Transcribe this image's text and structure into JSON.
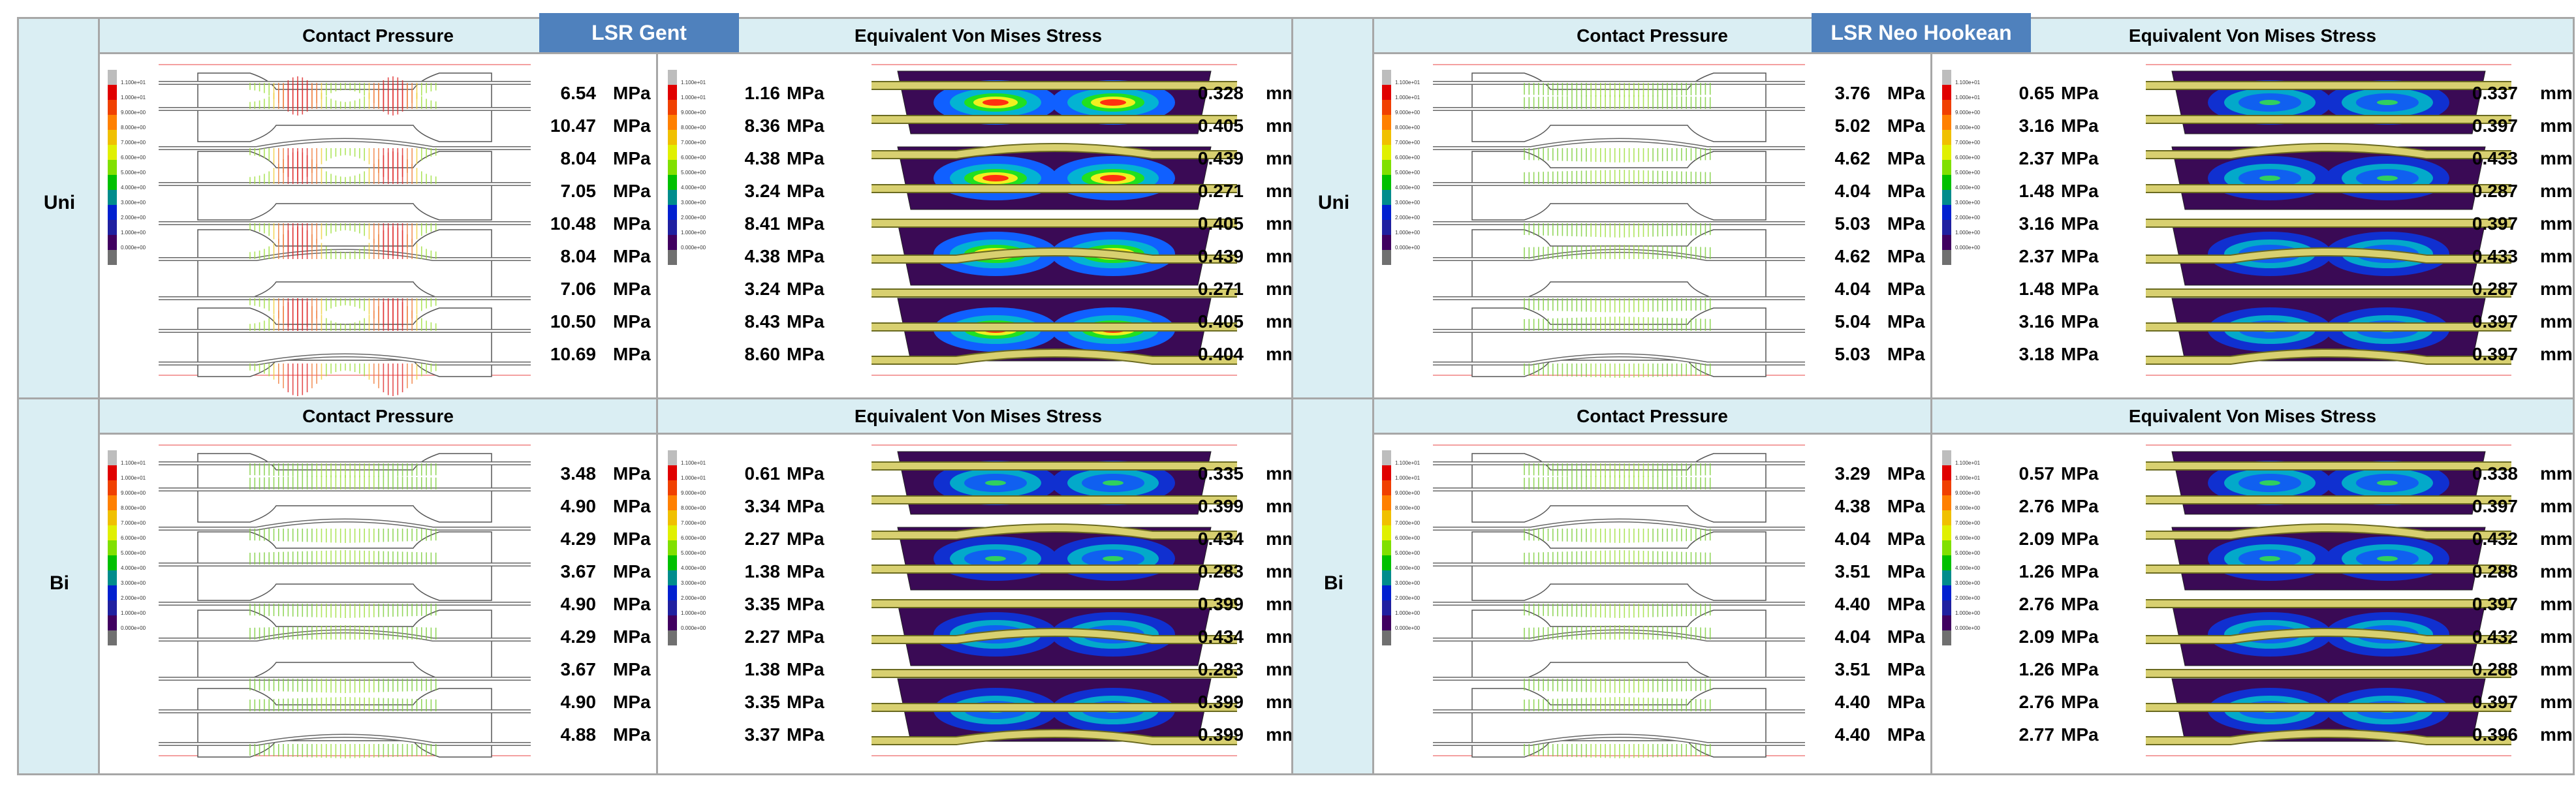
{
  "materials": [
    {
      "badge": "LSR Gent",
      "rows": [
        {
          "label": "Uni",
          "cp_header": "Contact Pressure",
          "vm_header": "Equivalent Von  Mises Stress",
          "cp_values": [
            "6.54",
            "10.47",
            "8.04",
            "7.05",
            "10.48",
            "8.04",
            "7.06",
            "10.50",
            "10.69"
          ],
          "vm_values": [
            "1.16",
            "8.36",
            "4.38",
            "3.24",
            "8.41",
            "4.38",
            "3.24",
            "8.43",
            "8.60"
          ],
          "disp_values": [
            "0.328",
            "0.405",
            "0.439",
            "0.271",
            "0.405",
            "0.439",
            "0.271",
            "0.405",
            "0.404"
          ],
          "cp_intensity": "high",
          "vm_intensity": "high"
        },
        {
          "label": "Bi",
          "cp_header": "Contact Pressure",
          "vm_header": "Equivalent Von  Mises Stress",
          "cp_values": [
            "3.48",
            "4.90",
            "4.29",
            "3.67",
            "4.90",
            "4.29",
            "3.67",
            "4.90",
            "4.88"
          ],
          "vm_values": [
            "0.61",
            "3.34",
            "2.27",
            "1.38",
            "3.35",
            "2.27",
            "1.38",
            "3.35",
            "3.37"
          ],
          "disp_values": [
            "0.335",
            "0.399",
            "0.434",
            "0.283",
            "0.399",
            "0.434",
            "0.283",
            "0.399",
            "0.399"
          ],
          "cp_intensity": "low",
          "vm_intensity": "low"
        }
      ]
    },
    {
      "badge": "LSR Neo Hookean",
      "rows": [
        {
          "label": "Uni",
          "cp_header": "Contact Pressure",
          "vm_header": "Equivalent Von  Mises Stress",
          "cp_values": [
            "3.76",
            "5.02",
            "4.62",
            "4.04",
            "5.03",
            "4.62",
            "4.04",
            "5.04",
            "5.03"
          ],
          "vm_values": [
            "0.65",
            "3.16",
            "2.37",
            "1.48",
            "3.16",
            "2.37",
            "1.48",
            "3.16",
            "3.18"
          ],
          "disp_values": [
            "0.337",
            "0.397",
            "0.433",
            "0.287",
            "0.397",
            "0.433",
            "0.287",
            "0.397",
            "0.397"
          ],
          "cp_intensity": "low",
          "vm_intensity": "low"
        },
        {
          "label": "Bi",
          "cp_header": "Contact Pressure",
          "vm_header": "Equivalent Von  Mises Stress",
          "cp_values": [
            "3.29",
            "4.38",
            "4.04",
            "3.51",
            "4.40",
            "4.04",
            "3.51",
            "4.40",
            "4.40"
          ],
          "vm_values": [
            "0.57",
            "2.76",
            "2.09",
            "1.26",
            "2.76",
            "2.09",
            "1.26",
            "2.76",
            "2.77"
          ],
          "disp_values": [
            "0.338",
            "0.397",
            "0.432",
            "0.288",
            "0.397",
            "0.432",
            "0.288",
            "0.397",
            "0.396"
          ],
          "cp_intensity": "low",
          "vm_intensity": "low"
        }
      ]
    }
  ],
  "units": {
    "pressure": "MPa",
    "displacement": "mm"
  },
  "legend_labels": [
    "1.100e+01",
    "1.000e+01",
    "9.000e+00",
    "8.000e+00",
    "7.000e+00",
    "6.000e+00",
    "5.000e+00",
    "4.000e+00",
    "3.000e+00",
    "2.000e+00",
    "1.000e+00",
    "0.000e+00"
  ],
  "legend_colors": [
    "#bdbdbd",
    "#e00000",
    "#f04000",
    "#ff8000",
    "#f0c000",
    "#e0f000",
    "#80e000",
    "#00c000",
    "#008c8c",
    "#0020d0",
    "#2020a0",
    "#400060",
    "#707070"
  ]
}
